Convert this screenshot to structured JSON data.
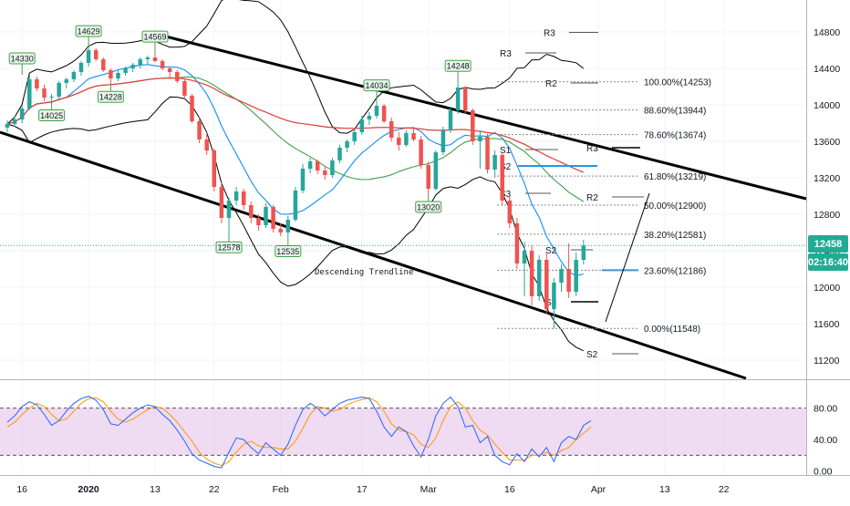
{
  "chart_data": [
    {
      "type": "candlestick",
      "title": "",
      "price_axis": {
        "range": [
          11000,
          14900
        ],
        "ticks": [
          11200,
          11600,
          12000,
          12400,
          12800,
          13200,
          13600,
          14000,
          14400,
          14800
        ],
        "tick_labels": [
          "11200",
          "11600",
          "12000",
          "12400",
          "12800",
          "13200",
          "13600",
          "14000",
          "14400",
          "14800"
        ],
        "last_price": 12458,
        "last_price_label": "12458",
        "countdown": "02:16:40"
      },
      "time_axis": {
        "labels": [
          "16",
          "2020",
          "13",
          "22",
          "Feb",
          "17",
          "Mar",
          "16",
          "Apr",
          "13",
          "22"
        ],
        "label_bars": [
          2,
          11,
          20,
          28,
          37,
          48,
          57,
          68,
          80,
          89,
          97
        ]
      },
      "pivot_labels": [
        {
          "text": "14330",
          "bar": 2,
          "price": 14330
        },
        {
          "text": "14629",
          "bar": 11,
          "price": 14629
        },
        {
          "text": "14569",
          "bar": 20,
          "price": 14569
        },
        {
          "text": "14228",
          "bar": 14,
          "price": 14228
        },
        {
          "text": "14025",
          "bar": 6,
          "price": 14025
        },
        {
          "text": "14034",
          "bar": 50,
          "price": 14034
        },
        {
          "text": "14248",
          "bar": 61,
          "price": 14248
        },
        {
          "text": "13020",
          "bar": 57,
          "price": 13020
        },
        {
          "text": "12578",
          "bar": 30,
          "price": 12578
        },
        {
          "text": "12535",
          "bar": 38,
          "price": 12535
        }
      ],
      "trendline_label": "Descending Trendline",
      "fibonacci": [
        {
          "label": "100.00%(14253)",
          "price": 14253
        },
        {
          "label": "88.60%(13944)",
          "price": 13944
        },
        {
          "label": "78.60%(13674)",
          "price": 13674
        },
        {
          "label": "61.80%(13219)",
          "price": 13219
        },
        {
          "label": "50.00%(12900)",
          "price": 12900
        },
        {
          "label": "38.20%(12581)",
          "price": 12581
        },
        {
          "label": "23.60%(12186)",
          "price": 12186
        },
        {
          "label": "0.00%(11548)",
          "price": 11548
        }
      ],
      "pivot_levels": [
        {
          "label": "R3",
          "price": 14795
        },
        {
          "label": "R3",
          "price": 14570
        },
        {
          "label": "R2",
          "price": 14240
        },
        {
          "label": "R3",
          "price": 13530
        },
        {
          "label": "R2",
          "price": 12990
        },
        {
          "label": "S1",
          "price": 13510
        },
        {
          "label": "S2",
          "price": 13330
        },
        {
          "label": "S3",
          "price": 13030
        },
        {
          "label": "S2",
          "price": 12410
        },
        {
          "label": "S3",
          "price": 11840
        },
        {
          "label": "S2",
          "price": 11270
        }
      ],
      "candles": [
        {
          "o": 13750,
          "h": 13830,
          "l": 13700,
          "c": 13790
        },
        {
          "o": 13790,
          "h": 13880,
          "l": 13760,
          "c": 13840
        },
        {
          "o": 13840,
          "h": 14000,
          "l": 13800,
          "c": 13960
        },
        {
          "o": 13960,
          "h": 14330,
          "l": 13940,
          "c": 14280
        },
        {
          "o": 14280,
          "h": 14310,
          "l": 14150,
          "c": 14180
        },
        {
          "o": 14180,
          "h": 14220,
          "l": 14040,
          "c": 14080
        },
        {
          "o": 14080,
          "h": 14120,
          "l": 14025,
          "c": 14090
        },
        {
          "o": 14090,
          "h": 14260,
          "l": 14060,
          "c": 14240
        },
        {
          "o": 14240,
          "h": 14300,
          "l": 14180,
          "c": 14280
        },
        {
          "o": 14280,
          "h": 14380,
          "l": 14250,
          "c": 14360
        },
        {
          "o": 14360,
          "h": 14480,
          "l": 14320,
          "c": 14460
        },
        {
          "o": 14460,
          "h": 14629,
          "l": 14420,
          "c": 14600
        },
        {
          "o": 14600,
          "h": 14620,
          "l": 14480,
          "c": 14500
        },
        {
          "o": 14500,
          "h": 14520,
          "l": 14360,
          "c": 14380
        },
        {
          "o": 14380,
          "h": 14400,
          "l": 14228,
          "c": 14290
        },
        {
          "o": 14290,
          "h": 14380,
          "l": 14260,
          "c": 14350
        },
        {
          "o": 14350,
          "h": 14420,
          "l": 14320,
          "c": 14400
        },
        {
          "o": 14400,
          "h": 14460,
          "l": 14360,
          "c": 14440
        },
        {
          "o": 14440,
          "h": 14520,
          "l": 14400,
          "c": 14500
        },
        {
          "o": 14500,
          "h": 14540,
          "l": 14440,
          "c": 14520
        },
        {
          "o": 14520,
          "h": 14569,
          "l": 14470,
          "c": 14480
        },
        {
          "o": 14480,
          "h": 14500,
          "l": 14380,
          "c": 14400
        },
        {
          "o": 14400,
          "h": 14420,
          "l": 14300,
          "c": 14360
        },
        {
          "o": 14360,
          "h": 14380,
          "l": 14240,
          "c": 14260
        },
        {
          "o": 14260,
          "h": 14290,
          "l": 14080,
          "c": 14100
        },
        {
          "o": 14100,
          "h": 14120,
          "l": 13800,
          "c": 13820
        },
        {
          "o": 13820,
          "h": 13860,
          "l": 13580,
          "c": 13620
        },
        {
          "o": 13620,
          "h": 13700,
          "l": 13450,
          "c": 13500
        },
        {
          "o": 13500,
          "h": 13520,
          "l": 13050,
          "c": 13100
        },
        {
          "o": 13100,
          "h": 13150,
          "l": 12700,
          "c": 12760
        },
        {
          "o": 12760,
          "h": 12980,
          "l": 12578,
          "c": 12950
        },
        {
          "o": 12950,
          "h": 13100,
          "l": 12900,
          "c": 13050
        },
        {
          "o": 13050,
          "h": 13080,
          "l": 12850,
          "c": 12900
        },
        {
          "o": 12900,
          "h": 12940,
          "l": 12700,
          "c": 12760
        },
        {
          "o": 12760,
          "h": 12800,
          "l": 12620,
          "c": 12680
        },
        {
          "o": 12680,
          "h": 12920,
          "l": 12650,
          "c": 12880
        },
        {
          "o": 12880,
          "h": 12900,
          "l": 12600,
          "c": 12640
        },
        {
          "o": 12640,
          "h": 12700,
          "l": 12560,
          "c": 12600
        },
        {
          "o": 12600,
          "h": 12780,
          "l": 12535,
          "c": 12740
        },
        {
          "o": 12740,
          "h": 13100,
          "l": 12720,
          "c": 13060
        },
        {
          "o": 13060,
          "h": 13350,
          "l": 13030,
          "c": 13300
        },
        {
          "o": 13300,
          "h": 13420,
          "l": 13250,
          "c": 13380
        },
        {
          "o": 13380,
          "h": 13400,
          "l": 13240,
          "c": 13280
        },
        {
          "o": 13280,
          "h": 13320,
          "l": 13180,
          "c": 13230
        },
        {
          "o": 13230,
          "h": 13420,
          "l": 13200,
          "c": 13390
        },
        {
          "o": 13390,
          "h": 13560,
          "l": 13360,
          "c": 13530
        },
        {
          "o": 13530,
          "h": 13620,
          "l": 13480,
          "c": 13600
        },
        {
          "o": 13600,
          "h": 13740,
          "l": 13560,
          "c": 13700
        },
        {
          "o": 13700,
          "h": 13880,
          "l": 13670,
          "c": 13840
        },
        {
          "o": 13840,
          "h": 13920,
          "l": 13780,
          "c": 13880
        },
        {
          "o": 13880,
          "h": 14034,
          "l": 13850,
          "c": 13990
        },
        {
          "o": 13990,
          "h": 14010,
          "l": 13800,
          "c": 13820
        },
        {
          "o": 13820,
          "h": 13860,
          "l": 13600,
          "c": 13640
        },
        {
          "o": 13640,
          "h": 13700,
          "l": 13500,
          "c": 13560
        },
        {
          "o": 13560,
          "h": 13720,
          "l": 13540,
          "c": 13690
        },
        {
          "o": 13690,
          "h": 13760,
          "l": 13600,
          "c": 13620
        },
        {
          "o": 13620,
          "h": 13660,
          "l": 13300,
          "c": 13340
        },
        {
          "o": 13340,
          "h": 13380,
          "l": 13020,
          "c": 13080
        },
        {
          "o": 13080,
          "h": 13500,
          "l": 13060,
          "c": 13480
        },
        {
          "o": 13480,
          "h": 13760,
          "l": 13450,
          "c": 13720
        },
        {
          "o": 13720,
          "h": 13980,
          "l": 13690,
          "c": 13940
        },
        {
          "o": 13940,
          "h": 14248,
          "l": 13900,
          "c": 14190
        },
        {
          "o": 14190,
          "h": 14200,
          "l": 13900,
          "c": 13940
        },
        {
          "o": 13940,
          "h": 13960,
          "l": 13560,
          "c": 13600
        },
        {
          "o": 13600,
          "h": 13720,
          "l": 13300,
          "c": 13650
        },
        {
          "o": 13650,
          "h": 13680,
          "l": 13250,
          "c": 13290
        },
        {
          "o": 13290,
          "h": 13500,
          "l": 13200,
          "c": 13450
        },
        {
          "o": 13450,
          "h": 13480,
          "l": 12900,
          "c": 12950
        },
        {
          "o": 12950,
          "h": 13000,
          "l": 12650,
          "c": 12700
        },
        {
          "o": 12700,
          "h": 12760,
          "l": 12200,
          "c": 12260
        },
        {
          "o": 12260,
          "h": 12500,
          "l": 11900,
          "c": 12400
        },
        {
          "o": 12400,
          "h": 12460,
          "l": 11800,
          "c": 11900
        },
        {
          "o": 11900,
          "h": 12350,
          "l": 11850,
          "c": 12300
        },
        {
          "o": 12300,
          "h": 12380,
          "l": 11700,
          "c": 11760
        },
        {
          "o": 11760,
          "h": 12100,
          "l": 11548,
          "c": 12050
        },
        {
          "o": 12050,
          "h": 12250,
          "l": 11950,
          "c": 12200
        },
        {
          "o": 12200,
          "h": 12480,
          "l": 11880,
          "c": 11950
        },
        {
          "o": 11950,
          "h": 12380,
          "l": 11900,
          "c": 12300
        },
        {
          "o": 12300,
          "h": 12520,
          "l": 12250,
          "c": 12458
        }
      ],
      "oscillator": {
        "range": [
          -5,
          105
        ],
        "ticks": [
          0,
          40,
          80
        ],
        "tick_labels": [
          "0.00",
          "40.00",
          "80.00"
        ],
        "bands": [
          20,
          80
        ],
        "k": [
          62,
          70,
          82,
          88,
          84,
          72,
          58,
          64,
          76,
          86,
          92,
          95,
          90,
          78,
          60,
          58,
          66,
          74,
          80,
          84,
          82,
          72,
          64,
          52,
          38,
          22,
          14,
          10,
          6,
          4,
          24,
          42,
          40,
          30,
          22,
          36,
          28,
          20,
          34,
          58,
          78,
          86,
          80,
          70,
          78,
          86,
          90,
          92,
          94,
          92,
          76,
          56,
          44,
          56,
          50,
          32,
          18,
          40,
          70,
          86,
          94,
          82,
          56,
          58,
          36,
          44,
          20,
          12,
          8,
          22,
          12,
          28,
          18,
          30,
          12,
          36,
          44,
          40,
          58,
          64
        ],
        "d": [
          56,
          62,
          72,
          80,
          86,
          82,
          72,
          64,
          66,
          76,
          86,
          92,
          93,
          88,
          76,
          66,
          62,
          66,
          72,
          78,
          82,
          80,
          72,
          62,
          50,
          38,
          24,
          15,
          10,
          7,
          12,
          24,
          34,
          38,
          32,
          30,
          30,
          28,
          28,
          38,
          54,
          72,
          82,
          80,
          76,
          78,
          84,
          88,
          91,
          93,
          88,
          76,
          60,
          52,
          50,
          46,
          34,
          30,
          42,
          64,
          82,
          88,
          80,
          64,
          52,
          46,
          34,
          24,
          14,
          14,
          14,
          20,
          20,
          24,
          20,
          26,
          30,
          40,
          48,
          56
        ]
      }
    }
  ]
}
